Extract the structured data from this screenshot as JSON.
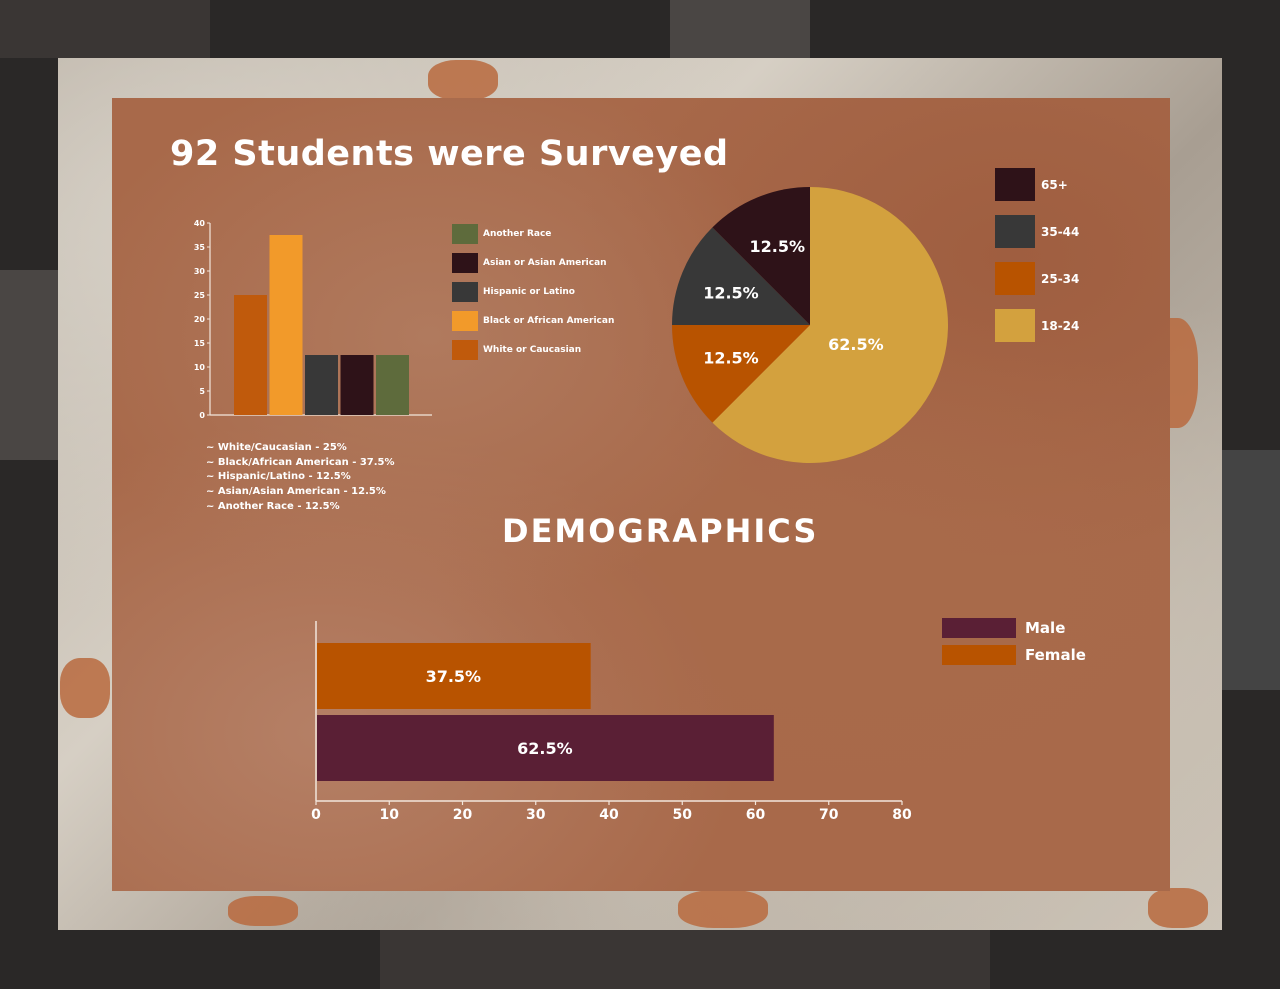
{
  "title": "92 Students were Surveyed",
  "heading": "DEMOGRAPHICS",
  "colors": {
    "white": "#c05a0c",
    "black": "#f29a2a",
    "hispanic": "#383838",
    "asian": "#2e1218",
    "another": "#5e6b3c",
    "age_65": "#2e1218",
    "age_35": "#383838",
    "age_25": "#b85300",
    "age_18": "#d3a13e",
    "male": "#5a1f35",
    "female": "#b85300"
  },
  "race_notes": [
    "~ White/Caucasian - 25%",
    "~ Black/African American - 37.5%",
    "~ Hispanic/Latino - 12.5%",
    "~ Asian/Asian American - 12.5%",
    "~ Another Race - 12.5%"
  ],
  "chart_data": [
    {
      "type": "bar",
      "categories": [
        "White or Caucasian",
        "Black or African American",
        "Hispanic or Latino",
        "Asian or Asian American",
        "Another Race"
      ],
      "values": [
        25,
        37.5,
        12.5,
        12.5,
        12.5
      ],
      "colors": [
        "#c05a0c",
        "#f29a2a",
        "#383838",
        "#2e1218",
        "#5e6b3c"
      ],
      "ylim": [
        0,
        40
      ],
      "yticks": [
        "0",
        "5",
        "10",
        "15",
        "20",
        "25",
        "30",
        "35",
        "40"
      ],
      "legend": [
        "Another Race",
        "Asian or Asian American",
        "Hispanic or Latino",
        "Black or African American",
        "White or Caucasian"
      ],
      "legend_colors": [
        "#5e6b3c",
        "#2e1218",
        "#383838",
        "#f29a2a",
        "#c05a0c"
      ],
      "legend_position": "right",
      "grid": false
    },
    {
      "type": "pie",
      "labels": [
        "18-24",
        "25-34",
        "35-44",
        "65+"
      ],
      "values": [
        62.5,
        12.5,
        12.5,
        12.5
      ],
      "value_labels": [
        "62.5%",
        "12.5%",
        "12.5%",
        "12.5%"
      ],
      "colors": [
        "#d3a13e",
        "#b85300",
        "#383838",
        "#2e1218"
      ],
      "legend": [
        "65+",
        "35-44",
        "25-34",
        "18-24"
      ],
      "legend_colors": [
        "#2e1218",
        "#383838",
        "#b85300",
        "#d3a13e"
      ],
      "legend_position": "right"
    },
    {
      "type": "bar",
      "orientation": "horizontal",
      "categories": [
        "Female",
        "Male"
      ],
      "values": [
        37.5,
        62.5
      ],
      "value_labels": [
        "37.5%",
        "62.5%"
      ],
      "colors": [
        "#b85300",
        "#5a1f35"
      ],
      "xlim": [
        0,
        80
      ],
      "xticks": [
        "0",
        "10",
        "20",
        "30",
        "40",
        "50",
        "60",
        "70",
        "80"
      ],
      "legend": [
        "Male",
        "Female"
      ],
      "legend_colors": [
        "#5a1f35",
        "#b85300"
      ],
      "legend_position": "right",
      "grid": false
    }
  ]
}
